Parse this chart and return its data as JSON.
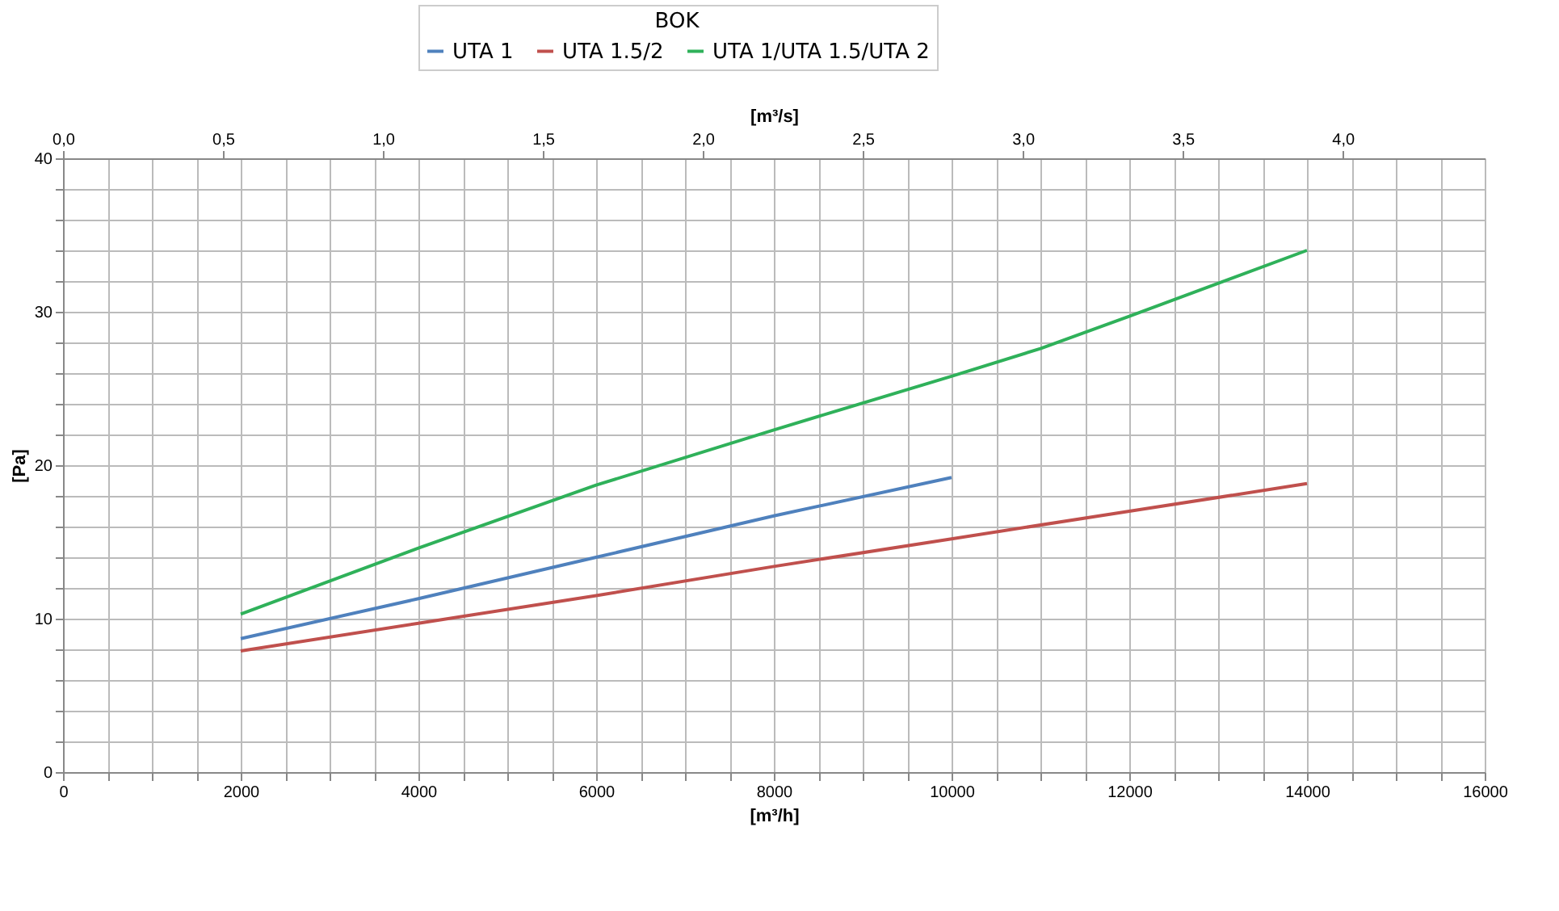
{
  "chart_data": {
    "type": "line",
    "legend_title": "BOK",
    "xlabel": "[m³/h]",
    "ylabel": "[Pa]",
    "x2label": "[m³/s]",
    "series": [
      {
        "name": "UTA 1",
        "color": "#4f81bd",
        "x": [
          2000,
          4000,
          6000,
          8000,
          10000
        ],
        "values": [
          8.7,
          11.3,
          14.0,
          16.7,
          19.2
        ]
      },
      {
        "name": "UTA 1.5/2",
        "color": "#c0504d",
        "x": [
          2000,
          4000,
          6000,
          8000,
          10000,
          12000,
          14000
        ],
        "values": [
          7.9,
          9.7,
          11.5,
          13.4,
          15.2,
          17.0,
          18.8
        ]
      },
      {
        "name": "UTA 1/UTA 1.5/UTA 2",
        "color": "#2fb15a",
        "x": [
          2000,
          4000,
          6000,
          8000,
          10000,
          11000,
          12000,
          14000
        ],
        "values": [
          10.3,
          14.6,
          18.7,
          22.3,
          25.8,
          27.6,
          29.7,
          34.0
        ]
      }
    ],
    "xlim": [
      0,
      16000
    ],
    "xticks": [
      0,
      {
        "value": 500,
        "label": null
      },
      {
        "value": 1000,
        "label": null
      },
      {
        "value": 1500,
        "label": null
      },
      2000,
      {
        "value": 2500,
        "label": null
      },
      {
        "value": 3000,
        "label": null
      },
      {
        "value": 3500,
        "label": null
      },
      4000,
      {
        "value": 4500,
        "label": null
      },
      {
        "value": 5000,
        "label": null
      },
      {
        "value": 5500,
        "label": null
      },
      6000,
      {
        "value": 6500,
        "label": null
      },
      {
        "value": 7000,
        "label": null
      },
      {
        "value": 7500,
        "label": null
      },
      8000,
      {
        "value": 8500,
        "label": null
      },
      {
        "value": 9000,
        "label": null
      },
      {
        "value": 9500,
        "label": null
      },
      10000,
      {
        "value": 10500,
        "label": null
      },
      {
        "value": 11000,
        "label": null
      },
      {
        "value": 11500,
        "label": null
      },
      12000,
      {
        "value": 12500,
        "label": null
      },
      {
        "value": 13000,
        "label": null
      },
      {
        "value": 13500,
        "label": null
      },
      14000,
      {
        "value": 14500,
        "label": null
      },
      {
        "value": 15000,
        "label": null
      },
      {
        "value": 15500,
        "label": null
      },
      16000
    ],
    "ylim": [
      0,
      40
    ],
    "yticks": [
      0,
      {
        "value": 2,
        "label": null
      },
      {
        "value": 4,
        "label": null
      },
      {
        "value": 6,
        "label": null
      },
      {
        "value": 8,
        "label": null
      },
      10,
      {
        "value": 12,
        "label": null
      },
      {
        "value": 14,
        "label": null
      },
      {
        "value": 16,
        "label": null
      },
      {
        "value": 18,
        "label": null
      },
      20,
      {
        "value": 22,
        "label": null
      },
      {
        "value": 24,
        "label": null
      },
      {
        "value": 26,
        "label": null
      },
      {
        "value": 28,
        "label": null
      },
      30,
      {
        "value": 32,
        "label": null
      },
      {
        "value": 34,
        "label": null
      },
      {
        "value": 36,
        "label": null
      },
      {
        "value": 38,
        "label": null
      },
      40
    ],
    "x2lim": [
      0,
      4.444
    ],
    "x2ticks": [
      {
        "value": 0,
        "label": "0,0"
      },
      {
        "value": 0.5,
        "label": "0,5"
      },
      {
        "value": 1,
        "label": "1,0"
      },
      {
        "value": 1.5,
        "label": "1,5"
      },
      {
        "value": 2,
        "label": "2,0"
      },
      {
        "value": 2.5,
        "label": "2,5"
      },
      {
        "value": 3,
        "label": "3,0"
      },
      {
        "value": 3.5,
        "label": "3,5"
      },
      {
        "value": 4,
        "label": "4,0"
      }
    ],
    "grid": true,
    "legend": "top",
    "marker": "none",
    "line_style": "solid"
  }
}
